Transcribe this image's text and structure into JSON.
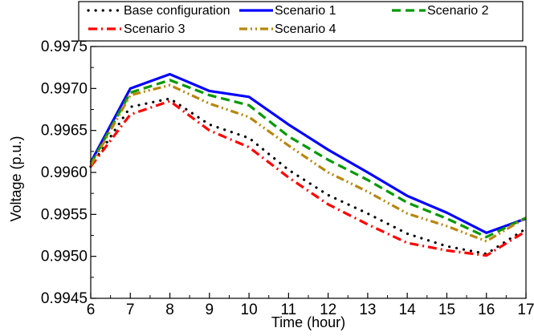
{
  "chart_data": {
    "type": "line",
    "xlabel": "Time (hour)",
    "ylabel": "Voltage (p.u.)",
    "xlim": [
      6,
      17
    ],
    "ylim": [
      0.9945,
      0.9975
    ],
    "x": [
      6,
      7,
      8,
      9,
      10,
      11,
      12,
      13,
      14,
      15,
      16,
      17
    ],
    "x_ticks": [
      "6",
      "7",
      "8",
      "9",
      "10",
      "11",
      "12",
      "13",
      "14",
      "15",
      "16",
      "17"
    ],
    "y_ticks": [
      "0.9945",
      "0.9950",
      "0.9955",
      "0.9960",
      "0.9965",
      "0.9970",
      "0.9975"
    ],
    "y_tick_values": [
      0.9945,
      0.995,
      0.9955,
      0.996,
      0.9965,
      0.997,
      0.9975
    ],
    "grid": false,
    "legend": "top, inside frame, 3 columns",
    "series": [
      {
        "name": "Base configuration",
        "color": "#000000",
        "style": "dotted",
        "values": [
          0.99607,
          0.99678,
          0.99688,
          0.99657,
          0.99641,
          0.99603,
          0.99573,
          0.99551,
          0.99527,
          0.99512,
          0.99503,
          0.99533
        ]
      },
      {
        "name": "Scenario 1",
        "color": "#0000ff",
        "style": "solid",
        "values": [
          0.99612,
          0.997,
          0.99717,
          0.99697,
          0.9969,
          0.99657,
          0.99627,
          0.996,
          0.99572,
          0.99552,
          0.99528,
          0.99545
        ]
      },
      {
        "name": "Scenario 2",
        "color": "#009900",
        "style": "dashed",
        "values": [
          0.9961,
          0.99695,
          0.9971,
          0.99692,
          0.9968,
          0.99643,
          0.99615,
          0.99591,
          0.99564,
          0.99545,
          0.99523,
          0.99546
        ]
      },
      {
        "name": "Scenario 3",
        "color": "#ff0000",
        "style": "dashdot",
        "values": [
          0.99607,
          0.99669,
          0.99685,
          0.9965,
          0.9963,
          0.99594,
          0.99562,
          0.99538,
          0.99516,
          0.99507,
          0.99501,
          0.9953
        ]
      },
      {
        "name": "Scenario 4",
        "color": "#b8860b",
        "style": "dashdotdot",
        "values": [
          0.99608,
          0.99692,
          0.99704,
          0.99682,
          0.99666,
          0.99632,
          0.996,
          0.99577,
          0.99551,
          0.99536,
          0.99518,
          0.99546
        ]
      }
    ]
  }
}
